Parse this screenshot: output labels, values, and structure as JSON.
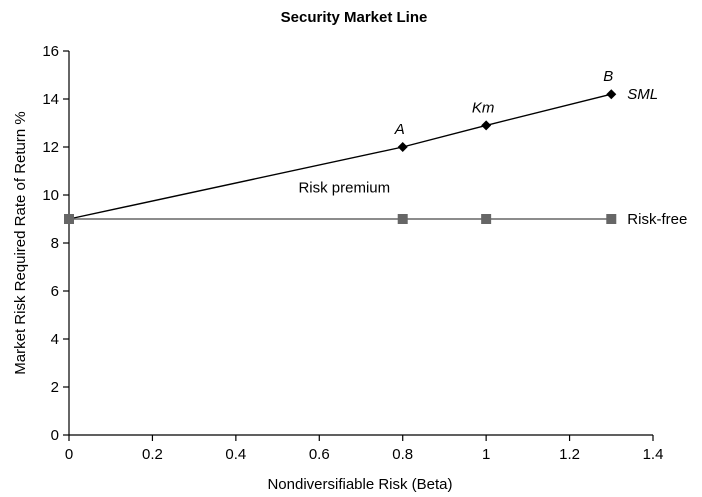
{
  "chart_data": {
    "type": "line",
    "title": "Security Market Line",
    "xlabel": "Nondiversifiable Risk (Beta)",
    "ylabel": "Market Risk Required Rate of Return %",
    "xlim": [
      0,
      1.4
    ],
    "ylim": [
      0,
      16
    ],
    "x_ticks": [
      "0",
      "0.2",
      "0.4",
      "0.6",
      "0.8",
      "1",
      "1.2",
      "1.4"
    ],
    "y_ticks": [
      "0",
      "2",
      "4",
      "6",
      "8",
      "10",
      "12",
      "14",
      "16"
    ],
    "grid": false,
    "legend": "none",
    "series": [
      {
        "name": "SML",
        "marker": "diamond",
        "color": "#000000",
        "x": [
          0,
          0.8,
          1,
          1.3
        ],
        "y": [
          9,
          12,
          12.9,
          14.2
        ],
        "point_labels": [
          "",
          "A",
          "Km",
          "B"
        ]
      },
      {
        "name": "Risk-free",
        "marker": "square",
        "color": "#666666",
        "x": [
          0,
          0.8,
          1,
          1.3
        ],
        "y": [
          9,
          9,
          9,
          9
        ]
      }
    ],
    "annotations": [
      {
        "text": "Risk premium",
        "x": 0.66,
        "y": 10.1
      }
    ]
  }
}
